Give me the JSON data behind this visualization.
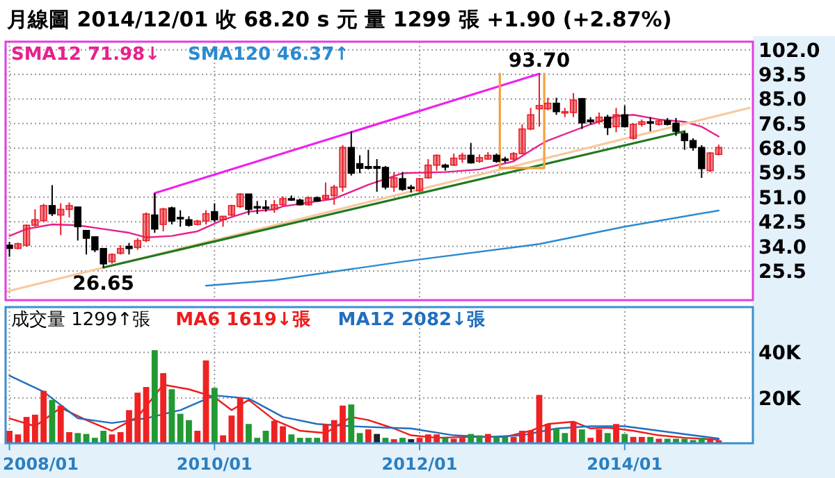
{
  "chart_data": [
    {
      "type": "candlestick",
      "title": "月線圖  2014/12/01  收 68.20 s 元  量 1299 張  +1.90 (+2.87%)",
      "x": [
        "2008-01",
        "2008-02",
        "2008-03",
        "2008-04",
        "2008-05",
        "2008-06",
        "2008-07",
        "2008-08",
        "2008-09",
        "2008-10",
        "2008-11",
        "2008-12",
        "2009-01",
        "2009-02",
        "2009-03",
        "2009-04",
        "2009-05",
        "2009-06",
        "2009-07",
        "2009-08",
        "2009-09",
        "2009-10",
        "2009-11",
        "2009-12",
        "2010-01",
        "2010-02",
        "2010-03",
        "2010-04",
        "2010-05",
        "2010-06",
        "2010-07",
        "2010-08",
        "2010-09",
        "2010-10",
        "2010-11",
        "2010-12",
        "2011-01",
        "2011-02",
        "2011-03",
        "2011-04",
        "2011-05",
        "2011-06",
        "2011-07",
        "2011-08",
        "2011-09",
        "2011-10",
        "2011-11",
        "2011-12",
        "2012-01",
        "2012-02",
        "2012-03",
        "2012-04",
        "2012-05",
        "2012-06",
        "2012-07",
        "2012-08",
        "2012-09",
        "2012-10",
        "2012-11",
        "2012-12",
        "2013-01",
        "2013-02",
        "2013-03",
        "2013-04",
        "2013-05",
        "2013-06",
        "2013-07",
        "2013-08",
        "2013-09",
        "2013-10",
        "2013-11",
        "2013-12",
        "2014-01",
        "2014-02",
        "2014-03",
        "2014-04",
        "2014-05",
        "2014-06",
        "2014-07",
        "2014-08",
        "2014-09",
        "2014-10",
        "2014-11",
        "2014-12"
      ],
      "ohlc": [
        [
          34.4,
          35.5,
          30.4,
          33.3
        ],
        [
          33.3,
          35.3,
          33.0,
          34.9
        ],
        [
          34.4,
          41.6,
          33.9,
          41.3
        ],
        [
          41.3,
          46.8,
          40.8,
          43.2
        ],
        [
          42.9,
          48.7,
          42.5,
          48.1
        ],
        [
          48.1,
          55.2,
          44.5,
          45.3
        ],
        [
          44.85,
          48.9,
          37.9,
          46.8
        ],
        [
          46.8,
          49.2,
          44.0,
          48.1
        ],
        [
          47.6,
          47.6,
          36.0,
          40.8
        ],
        [
          39.5,
          39.5,
          31.2,
          36.8
        ],
        [
          37.3,
          37.3,
          32.0,
          32.8
        ],
        [
          33.25,
          33.25,
          26.65,
          27.95
        ],
        [
          28.7,
          31.6,
          28.0,
          31.2
        ],
        [
          31.6,
          34.4,
          31.2,
          33.25
        ],
        [
          34.0,
          35.2,
          31.2,
          33.25
        ],
        [
          33.6,
          36.8,
          32.8,
          36.0
        ],
        [
          36.0,
          45.7,
          35.5,
          45.2
        ],
        [
          44.85,
          52.4,
          38.7,
          40.0
        ],
        [
          41.6,
          47.3,
          39.2,
          46.95
        ],
        [
          47.3,
          47.75,
          41.6,
          42.75
        ],
        [
          44.0,
          46.5,
          40.8,
          43.6
        ],
        [
          43.2,
          44.4,
          40.8,
          41.3
        ],
        [
          41.6,
          43.2,
          41.3,
          42.75
        ],
        [
          42.75,
          46.5,
          41.6,
          45.3
        ],
        [
          46.0,
          48.9,
          42.4,
          43.2
        ],
        [
          43.2,
          44.4,
          40.8,
          44.4
        ],
        [
          44.85,
          48.4,
          44.4,
          48.1
        ],
        [
          47.75,
          52.4,
          47.3,
          52.1
        ],
        [
          52.1,
          52.1,
          44.85,
          46.8
        ],
        [
          47.75,
          49.7,
          45.2,
          47.3
        ],
        [
          47.6,
          50.0,
          46.0,
          47.3
        ],
        [
          46.8,
          50.0,
          45.6,
          48.4
        ],
        [
          48.4,
          51.3,
          48.1,
          50.5
        ],
        [
          50.5,
          51.6,
          49.7,
          50.0
        ],
        [
          50.0,
          50.5,
          48.1,
          48.4
        ],
        [
          48.4,
          51.3,
          48.1,
          50.8
        ],
        [
          50.8,
          51.3,
          49.4,
          49.7
        ],
        [
          50.5,
          56.1,
          50.0,
          51.6
        ],
        [
          51.6,
          55.3,
          48.4,
          54.5
        ],
        [
          54.5,
          69.0,
          52.9,
          68.2
        ],
        [
          68.2,
          73.8,
          58.5,
          59.3
        ],
        [
          62.6,
          65.5,
          59.3,
          61.0
        ],
        [
          61.6,
          67.4,
          60.6,
          61.0
        ],
        [
          61.6,
          64.2,
          52.9,
          61.0
        ],
        [
          61.3,
          61.8,
          53.7,
          54.5
        ],
        [
          54.5,
          59.7,
          52.9,
          57.7
        ],
        [
          57.4,
          59.7,
          53.2,
          53.7
        ],
        [
          54.5,
          55.3,
          52.6,
          54.0
        ],
        [
          53.2,
          57.7,
          52.9,
          57.4
        ],
        [
          57.7,
          64.2,
          57.4,
          62.1
        ],
        [
          62.1,
          65.8,
          60.2,
          65.5
        ],
        [
          62.1,
          62.6,
          60.2,
          61.4
        ],
        [
          62.1,
          66.1,
          61.8,
          64.5
        ],
        [
          64.2,
          66.4,
          62.9,
          65.5
        ],
        [
          65.5,
          69.8,
          62.6,
          62.9
        ],
        [
          63.4,
          65.8,
          62.9,
          64.7
        ],
        [
          64.2,
          66.6,
          63.9,
          65.5
        ],
        [
          65.5,
          66.1,
          62.9,
          63.4
        ],
        [
          64.2,
          65.0,
          62.9,
          63.9
        ],
        [
          64.2,
          66.6,
          63.4,
          66.1
        ],
        [
          66.1,
          76.2,
          65.8,
          74.6
        ],
        [
          74.6,
          81.9,
          74.2,
          79.5
        ],
        [
          81.6,
          93.7,
          75.4,
          82.7
        ],
        [
          81.6,
          85.4,
          81.1,
          83.5
        ],
        [
          83.5,
          85.4,
          79.5,
          80.6
        ],
        [
          80.3,
          81.9,
          78.7,
          80.6
        ],
        [
          80.3,
          87.0,
          78.7,
          84.6
        ],
        [
          85.1,
          85.1,
          74.6,
          76.7
        ],
        [
          77.7,
          78.7,
          76.2,
          77.1
        ],
        [
          77.1,
          80.3,
          76.2,
          78.7
        ],
        [
          78.7,
          79.5,
          72.5,
          75.1
        ],
        [
          75.4,
          81.9,
          73.5,
          79.5
        ],
        [
          79.5,
          82.7,
          75.1,
          75.4
        ],
        [
          71.4,
          76.6,
          70.9,
          76.2
        ],
        [
          76.2,
          77.9,
          75.4,
          77.1
        ],
        [
          77.1,
          78.7,
          73.8,
          76.6
        ],
        [
          76.2,
          77.9,
          75.8,
          77.4
        ],
        [
          77.4,
          78.4,
          75.8,
          76.2
        ],
        [
          76.6,
          78.4,
          72.2,
          73.8
        ],
        [
          73.0,
          73.8,
          67.4,
          70.6
        ],
        [
          70.6,
          71.4,
          67.1,
          68.2
        ],
        [
          68.2,
          69.0,
          57.7,
          60.9
        ],
        [
          60.2,
          66.6,
          59.7,
          66.3
        ],
        [
          65.8,
          69.2,
          65.5,
          68.2
        ]
      ],
      "colors": [
        "#000000",
        "#e8202a",
        "#e8202a",
        "#e8202a",
        "#e8202a",
        "#000000",
        "#e8202a",
        "#e8202a",
        "#000000",
        "#000000",
        "#000000",
        "#000000",
        "#e8202a",
        "#e8202a",
        "#000000",
        "#e8202a",
        "#e8202a",
        "#000000",
        "#e8202a",
        "#000000",
        "#000000",
        "#000000",
        "#e8202a",
        "#e8202a",
        "#000000",
        "#e8202a",
        "#e8202a",
        "#e8202a",
        "#000000",
        "#000000",
        "#000000",
        "#e8202a",
        "#e8202a",
        "#000000",
        "#000000",
        "#e8202a",
        "#000000",
        "#e8202a",
        "#e8202a",
        "#e8202a",
        "#000000",
        "#000000",
        "#000000",
        "#000000",
        "#000000",
        "#e8202a",
        "#000000",
        "#000000",
        "#e8202a",
        "#e8202a",
        "#e8202a",
        "#000000",
        "#e8202a",
        "#e8202a",
        "#000000",
        "#e8202a",
        "#e8202a",
        "#000000",
        "#000000",
        "#e8202a",
        "#e8202a",
        "#e8202a",
        "#e8202a",
        "#e8202a",
        "#000000",
        "#e8202a",
        "#e8202a",
        "#000000",
        "#000000",
        "#e8202a",
        "#000000",
        "#e8202a",
        "#000000",
        "#e8202a",
        "#e8202a",
        "#000000",
        "#e8202a",
        "#000000",
        "#000000",
        "#000000",
        "#000000",
        "#000000",
        "#e8202a",
        "#e8202a"
      ],
      "series": [
        {
          "name": "SMA12 71.98↓",
          "type": "line",
          "color": "#e8208c",
          "x": [
            "2008-01",
            "2008-03",
            "2008-06",
            "2008-09",
            "2008-12",
            "2009-03",
            "2009-05",
            "2009-08",
            "2009-11",
            "2010-02",
            "2010-05",
            "2010-08",
            "2010-09",
            "2011-03",
            "2011-07",
            "2011-11",
            "2012-04",
            "2012-08",
            "2012-12",
            "2013-03",
            "2013-04",
            "2013-09",
            "2013-12",
            "2014-02",
            "2014-05",
            "2014-08",
            "2014-10",
            "2014-12"
          ],
          "values": [
            37.6,
            40.0,
            41.6,
            41.3,
            40.0,
            38.7,
            37.1,
            37.6,
            39.2,
            43.2,
            46.0,
            46.8,
            47.8,
            50.5,
            55.3,
            59.3,
            59.7,
            60.6,
            63.4,
            69.0,
            70.6,
            76.2,
            79.0,
            79.5,
            77.9,
            77.1,
            75.4,
            72.0
          ]
        },
        {
          "name": "SMA120 46.37↑",
          "type": "line",
          "color": "#2a8ad0",
          "x": [
            "2009-12",
            "2010-08",
            "2011-11",
            "2013-03",
            "2014-01",
            "2014-12"
          ],
          "values": [
            20.4,
            22.3,
            28.7,
            34.8,
            40.8,
            46.4
          ]
        },
        {
          "type": "line",
          "color": "#f8c89c",
          "x": [
            "2007-12-18",
            "2015-03-20"
          ],
          "values": [
            18.3,
            81.9
          ]
        },
        {
          "type": "line",
          "color": "#1f7a1f",
          "x": [
            "2008-12",
            "2014-08"
          ],
          "values": [
            26.7,
            73.8
          ]
        },
        {
          "type": "line",
          "color": "#ee22ee",
          "x": [
            "2009-06",
            "2009-06",
            "2013-03"
          ],
          "values": [
            44.9,
            52.4,
            93.7
          ]
        },
        {
          "type": "line",
          "color": "#f5a040",
          "x": [
            "2012-10-13",
            "2012-10-13",
            "2013-03-19",
            "2013-03-19"
          ],
          "values": [
            93.7,
            61.1,
            61.1,
            93.7
          ]
        }
      ],
      "annotations": [
        {
          "text": "26.65",
          "x": "2008-12",
          "y": 26.65
        },
        {
          "text": "93.70",
          "x": "2013-03",
          "y": 93.7
        }
      ],
      "xlim": [
        "2007-12-18",
        "2015-04-01"
      ],
      "ylim": [
        15.4,
        104.8
      ],
      "xticks": [
        {
          "value": "2008-01",
          "label": null
        },
        {
          "value": "2010-01",
          "label": null
        },
        {
          "value": "2012-01",
          "label": null
        },
        {
          "value": "2014-01",
          "label": null
        }
      ],
      "yticks": [
        {
          "value": 102,
          "label": "102.0"
        },
        {
          "value": 93.5,
          "label": "93.5"
        },
        {
          "value": 85,
          "label": "85.0"
        },
        {
          "value": 76.5,
          "label": "76.5"
        },
        {
          "value": 68,
          "label": "68.0"
        },
        {
          "value": 59.5,
          "label": "59.5"
        },
        {
          "value": 51,
          "label": "51.0"
        },
        {
          "value": 42.5,
          "label": "42.5"
        },
        {
          "value": 34,
          "label": "34.0"
        },
        {
          "value": 25.5,
          "label": "25.5"
        }
      ],
      "tick_labels": "y",
      "grid": true,
      "legend": "top left"
    },
    {
      "type": "bar",
      "title": "成交量 1299↑張",
      "x": [
        "2008-01",
        "2008-02",
        "2008-03",
        "2008-04",
        "2008-05",
        "2008-06",
        "2008-07",
        "2008-08",
        "2008-09",
        "2008-10",
        "2008-11",
        "2008-12",
        "2009-01",
        "2009-02",
        "2009-03",
        "2009-04",
        "2009-05",
        "2009-06",
        "2009-07",
        "2009-08",
        "2009-09",
        "2009-10",
        "2009-11",
        "2009-12",
        "2010-01",
        "2010-02",
        "2010-03",
        "2010-04",
        "2010-05",
        "2010-06",
        "2010-07",
        "2010-08",
        "2010-09",
        "2010-10",
        "2010-11",
        "2010-12",
        "2011-01",
        "2011-02",
        "2011-03",
        "2011-04",
        "2011-05",
        "2011-06",
        "2011-07",
        "2011-08",
        "2011-09",
        "2011-10",
        "2011-11",
        "2011-12",
        "2012-01",
        "2012-02",
        "2012-03",
        "2012-04",
        "2012-05",
        "2012-06",
        "2012-07",
        "2012-08",
        "2012-09",
        "2012-10",
        "2012-11",
        "2012-12",
        "2013-01",
        "2013-02",
        "2013-03",
        "2013-04",
        "2013-05",
        "2013-06",
        "2013-07",
        "2013-08",
        "2013-09",
        "2013-10",
        "2013-11",
        "2013-12",
        "2014-01",
        "2014-02",
        "2014-03",
        "2014-04",
        "2014-05",
        "2014-06",
        "2014-07",
        "2014-08",
        "2014-09",
        "2014-10",
        "2014-11",
        "2014-12"
      ],
      "values": [
        5500,
        3900,
        11600,
        12600,
        23100,
        19100,
        16600,
        4900,
        4500,
        4100,
        2400,
        5500,
        3900,
        4900,
        14600,
        22300,
        24800,
        41000,
        30900,
        23800,
        13000,
        10200,
        5500,
        36500,
        24400,
        3500,
        12200,
        20100,
        8500,
        2400,
        5500,
        9900,
        7500,
        3900,
        2400,
        2400,
        2400,
        8500,
        10200,
        16600,
        17100,
        4500,
        6100,
        4100,
        2400,
        1800,
        2400,
        1800,
        2400,
        3900,
        3900,
        2400,
        2000,
        2400,
        4100,
        3500,
        4100,
        2800,
        2800,
        2800,
        5500,
        5500,
        21300,
        8500,
        6500,
        4500,
        9500,
        6100,
        2400,
        6100,
        4500,
        8500,
        4100,
        2800,
        2800,
        2800,
        2000,
        2000,
        2000,
        2000,
        1400,
        2400,
        2000,
        1300
      ],
      "colors": [
        "#ee2222",
        "#ee2222",
        "#ee2222",
        "#ee2222",
        "#ee2222",
        "#229933",
        "#ee2222",
        "#ee2222",
        "#229933",
        "#229933",
        "#229933",
        "#229933",
        "#ee2222",
        "#ee2222",
        "#ee2222",
        "#ee2222",
        "#ee2222",
        "#229933",
        "#ee2222",
        "#229933",
        "#229933",
        "#229933",
        "#ee2222",
        "#ee2222",
        "#229933",
        "#ee2222",
        "#ee2222",
        "#ee2222",
        "#229933",
        "#229933",
        "#229933",
        "#ee2222",
        "#ee2222",
        "#229933",
        "#229933",
        "#229933",
        "#229933",
        "#ee2222",
        "#ee2222",
        "#ee2222",
        "#229933",
        "#229933",
        "#ee2222",
        "#222222",
        "#229933",
        "#ee2222",
        "#229933",
        "#222222",
        "#ee2222",
        "#ee2222",
        "#ee2222",
        "#229933",
        "#ee2222",
        "#ee2222",
        "#229933",
        "#229933",
        "#ee2222",
        "#229933",
        "#229933",
        "#ee2222",
        "#ee2222",
        "#ee2222",
        "#ee2222",
        "#ee2222",
        "#229933",
        "#229933",
        "#ee2222",
        "#229933",
        "#ee2222",
        "#ee2222",
        "#229933",
        "#ee2222",
        "#229933",
        "#ee2222",
        "#ee2222",
        "#229933",
        "#ee2222",
        "#229933",
        "#229933",
        "#229933",
        "#229933",
        "#229933",
        "#ee2222",
        "#ee2222"
      ],
      "series": [
        {
          "name": "MA6 1619↓張",
          "type": "line",
          "color": "#ee1c1c",
          "x": [
            "2008-01",
            "2008-04",
            "2008-07",
            "2008-10",
            "2009-01",
            "2009-04",
            "2009-07",
            "2009-10",
            "2010-01",
            "2010-03",
            "2010-05",
            "2010-08",
            "2010-11",
            "2011-02",
            "2011-05",
            "2011-07",
            "2011-10",
            "2011-12",
            "2012-03",
            "2012-07",
            "2012-11",
            "2013-02",
            "2013-04",
            "2013-07",
            "2013-09",
            "2013-11",
            "2014-02",
            "2014-05",
            "2014-08",
            "2014-12"
          ],
          "values": [
            11000,
            7500,
            15600,
            10200,
            5500,
            11600,
            25800,
            23800,
            20300,
            14600,
            19100,
            10200,
            5500,
            4500,
            11600,
            10200,
            6500,
            3500,
            2400,
            2800,
            2800,
            5500,
            8500,
            9500,
            6500,
            6900,
            5500,
            3500,
            2400,
            1600
          ]
        },
        {
          "name": "MA12 2082↓張",
          "type": "line",
          "color": "#1f6fc0",
          "x": [
            "2008-01",
            "2008-05",
            "2008-09",
            "2009-01",
            "2009-05",
            "2009-09",
            "2010-01",
            "2010-05",
            "2010-09",
            "2011-01",
            "2011-05",
            "2011-09",
            "2011-12",
            "2012-05",
            "2012-09",
            "2013-01",
            "2013-05",
            "2013-09",
            "2014-01",
            "2014-05",
            "2014-09",
            "2014-12"
          ],
          "values": [
            29800,
            22700,
            11000,
            8900,
            11000,
            14600,
            21100,
            19700,
            11600,
            8500,
            7500,
            6900,
            6500,
            3500,
            2800,
            3500,
            6500,
            7500,
            7500,
            5500,
            3500,
            2100
          ]
        }
      ],
      "xlim": [
        "2007-12-18",
        "2015-04-01"
      ],
      "ylim": [
        0,
        60000
      ],
      "xticks": [
        {
          "value": "2008-01",
          "label": "2008/01"
        },
        {
          "value": "2010-01",
          "label": "2010/01"
        },
        {
          "value": "2012-01",
          "label": "2012/01"
        },
        {
          "value": "2014-01",
          "label": "2014/01"
        }
      ],
      "yticks": [
        {
          "value": 20000,
          "label": "20K"
        },
        {
          "value": 40000,
          "label": "40K"
        }
      ],
      "grid": true,
      "legend": "top left"
    }
  ]
}
